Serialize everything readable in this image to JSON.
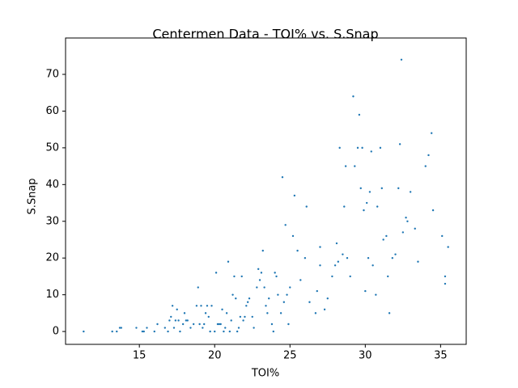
{
  "chart_data": {
    "type": "scatter",
    "title": "Centermen Data - TOI% vs. S.Snap",
    "x_label": "TOI%",
    "y_label": "S.Snap",
    "color": "#1f77b4",
    "grid": false,
    "xlim": [
      10.1,
      36.7
    ],
    "ylim": [
      -3.5,
      79.9
    ],
    "xticks": [
      15,
      20,
      25,
      30,
      35
    ],
    "yticks": [
      0,
      10,
      20,
      30,
      40,
      50,
      60,
      70
    ],
    "x": [
      11.3,
      13.2,
      13.5,
      13.7,
      13.8,
      14.8,
      15.2,
      15.3,
      15.5,
      16,
      16.2,
      16.7,
      16.9,
      17,
      17.1,
      17.2,
      17.3,
      17.4,
      17.5,
      17.6,
      17.7,
      17.9,
      18,
      18.1,
      18.2,
      18.4,
      18.6,
      18.8,
      18.9,
      19,
      19.1,
      19.2,
      19.3,
      19.4,
      19.5,
      19.6,
      19.7,
      19.8,
      20,
      20.1,
      20.2,
      20.3,
      20.4,
      20.5,
      20.6,
      20.7,
      20.8,
      20.9,
      21,
      21.1,
      21.2,
      21.3,
      21.4,
      21.5,
      21.6,
      21.7,
      21.8,
      21.9,
      22,
      22.1,
      22.2,
      22.3,
      22.5,
      22.6,
      22.8,
      22.9,
      23,
      23.1,
      23.2,
      23.3,
      23.4,
      23.5,
      23.6,
      23.8,
      23.9,
      24,
      24.1,
      24.2,
      24.4,
      24.5,
      24.6,
      24.7,
      24.8,
      24.9,
      25,
      25.2,
      25.3,
      25.5,
      25.7,
      26,
      26.1,
      26.3,
      26.7,
      26.8,
      27,
      27,
      27.3,
      27.5,
      27.8,
      28,
      28.1,
      28.2,
      28.3,
      28.5,
      28.6,
      28.7,
      28.8,
      29,
      29.2,
      29.3,
      29.5,
      29.6,
      29.7,
      29.8,
      29.9,
      30,
      30.1,
      30.2,
      30.3,
      30.4,
      30.5,
      30.7,
      30.8,
      31,
      31.1,
      31.2,
      31.4,
      31.5,
      31.6,
      31.8,
      32,
      32.2,
      32.3,
      32.4,
      32.5,
      32.7,
      32.8,
      33,
      33.3,
      33.5,
      34,
      34.2,
      34.4,
      34.5,
      35.1,
      35.3,
      35.3,
      35.5
    ],
    "values": [
      0,
      0,
      0,
      1,
      1,
      1,
      0,
      0,
      1,
      0,
      2,
      1,
      0,
      3,
      4,
      7,
      1,
      3,
      6,
      3,
      0,
      2,
      5,
      3,
      3,
      1,
      2,
      7,
      12,
      2,
      7,
      1,
      2,
      5,
      7,
      4,
      0,
      7,
      0,
      16,
      2,
      2,
      2,
      6,
      0,
      1,
      5,
      19,
      0,
      3,
      10,
      15,
      9,
      0,
      1,
      4,
      15,
      3,
      4,
      7,
      8,
      9,
      4,
      1,
      12,
      17,
      14,
      16,
      22,
      12,
      7,
      5,
      9,
      2,
      0,
      16,
      15,
      10,
      5,
      42,
      8,
      29,
      10,
      2,
      12,
      26,
      37,
      22,
      14,
      20,
      34,
      8,
      5,
      11,
      23,
      18,
      6,
      9,
      15,
      18,
      24,
      19,
      50,
      21,
      34,
      45,
      20,
      15,
      64,
      45,
      50,
      59,
      39,
      50,
      33,
      11,
      35,
      20,
      38,
      49,
      18,
      10,
      34,
      50,
      39,
      25,
      26,
      15,
      5,
      20,
      21,
      39,
      51,
      74,
      27,
      31,
      30,
      38,
      28,
      19,
      45,
      48,
      54,
      33,
      26,
      13,
      15,
      23
    ]
  }
}
